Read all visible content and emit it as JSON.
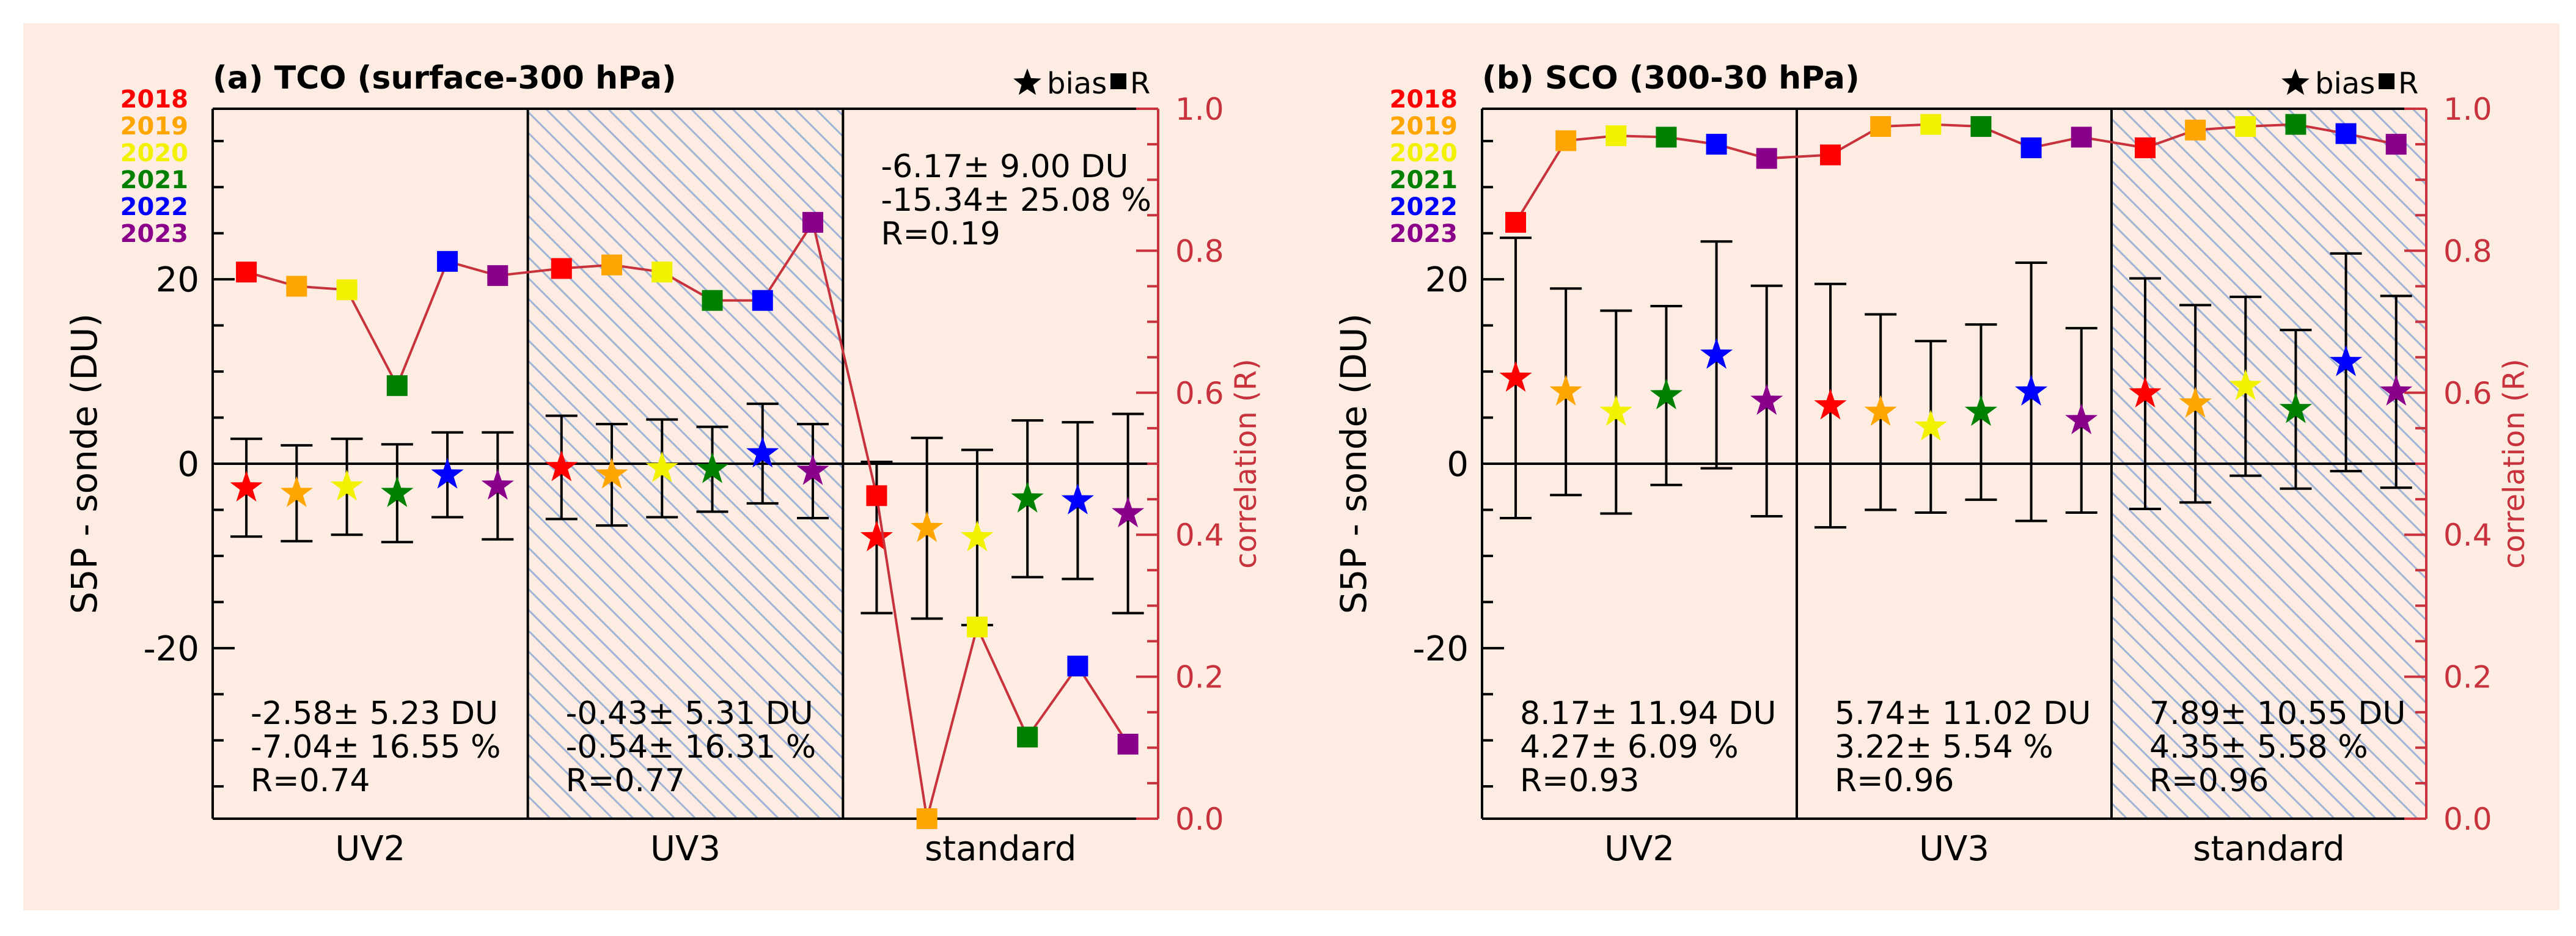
{
  "colors": {
    "background": "#fcece2",
    "axis": "#000000",
    "right_axis": "#c8323c",
    "r_line": "#c8323c",
    "hatch": "#9fb3d6",
    "years": {
      "2018": "#ff0000",
      "2019": "#ffa500",
      "2020": "#f2f200",
      "2021": "#008000",
      "2022": "#0000ff",
      "2023": "#8b008b"
    }
  },
  "legend": {
    "years": [
      "2018",
      "2019",
      "2020",
      "2021",
      "2022",
      "2023"
    ],
    "bias_label": "bias",
    "r_label": "R"
  },
  "chart_data": [
    {
      "type": "scatter",
      "title": "(a) TCO (surface-300 hPa)",
      "ylabel": "S5P - sonde (DU)",
      "y2label": "correlation (R)",
      "ylim": [
        -38.5,
        38.5
      ],
      "y2lim": [
        0.0,
        1.0
      ],
      "yticks": [
        20,
        0,
        -20
      ],
      "ytick_labels": [
        "20",
        "0",
        "-20"
      ],
      "y2ticks": [
        1.0,
        0.8,
        0.6,
        0.4,
        0.2,
        0.0
      ],
      "y2tick_labels": [
        "1.0",
        "0.8",
        "0.6",
        "0.4",
        "0.2",
        "0.0"
      ],
      "groups": [
        {
          "name": "UV2",
          "hatched": false,
          "bias": [
            -2.6,
            -3.2,
            -2.5,
            -3.2,
            -1.2,
            -2.4
          ],
          "bias_err": [
            5.3,
            5.2,
            5.2,
            5.3,
            4.6,
            5.8
          ],
          "r": [
            0.77,
            0.75,
            0.745,
            0.61,
            0.785,
            0.765
          ],
          "stats": [
            "-2.58± 5.23 DU",
            "-7.04± 16.55 %",
            "R=0.74"
          ],
          "stats_pos": "bottom"
        },
        {
          "name": "UV3",
          "hatched": true,
          "bias": [
            -0.4,
            -1.2,
            -0.5,
            -0.6,
            1.1,
            -0.8
          ],
          "bias_err": [
            5.6,
            5.5,
            5.3,
            4.6,
            5.4,
            5.1
          ],
          "r": [
            0.775,
            0.78,
            0.77,
            0.73,
            0.73,
            0.84
          ],
          "stats": [
            "-0.43± 5.31 DU",
            "-0.54± 16.31 %",
            "R=0.77"
          ],
          "stats_pos": "bottom"
        },
        {
          "name": "standard",
          "hatched": false,
          "bias": [
            -8.0,
            -7.0,
            -8.0,
            -3.8,
            -4.0,
            -5.4
          ],
          "bias_err": [
            8.2,
            9.8,
            9.5,
            8.5,
            8.5,
            10.8
          ],
          "r": [
            0.455,
            0.0,
            0.27,
            0.115,
            0.215,
            0.105
          ],
          "stats": [
            "-6.17± 9.00 DU",
            "-15.34± 25.08 %",
            "R=0.19"
          ],
          "stats_pos": "top"
        }
      ]
    },
    {
      "type": "scatter",
      "title": "(b) SCO (300-30 hPa)",
      "ylabel": "S5P - sonde (DU)",
      "y2label": "correlation (R)",
      "ylim": [
        -38.5,
        38.5
      ],
      "y2lim": [
        0.0,
        1.0
      ],
      "yticks": [
        20,
        0,
        -20
      ],
      "ytick_labels": [
        "20",
        "0",
        "-20"
      ],
      "y2ticks": [
        1.0,
        0.8,
        0.6,
        0.4,
        0.2,
        0.0
      ],
      "y2tick_labels": [
        "1.0",
        "0.8",
        "0.6",
        "0.4",
        "0.2",
        "0.0"
      ],
      "groups": [
        {
          "name": "UV2",
          "hatched": false,
          "bias": [
            9.3,
            7.8,
            5.6,
            7.4,
            11.8,
            6.8
          ],
          "bias_err": [
            15.2,
            11.2,
            11.0,
            9.7,
            12.3,
            12.5
          ],
          "r": [
            0.84,
            0.955,
            0.962,
            0.96,
            0.95,
            0.93
          ],
          "stats": [
            "8.17± 11.94 DU",
            "4.27± 6.09 %",
            "R=0.93"
          ],
          "stats_pos": "bottom"
        },
        {
          "name": "UV3",
          "hatched": false,
          "bias": [
            6.3,
            5.6,
            4.0,
            5.6,
            7.8,
            4.7
          ],
          "bias_err": [
            13.2,
            10.6,
            9.3,
            9.5,
            14.0,
            10.0
          ],
          "r": [
            0.935,
            0.975,
            0.978,
            0.975,
            0.945,
            0.96
          ],
          "stats": [
            "5.74± 11.02 DU",
            "3.22± 5.54 %",
            "R=0.96"
          ],
          "stats_pos": "bottom"
        },
        {
          "name": "standard",
          "hatched": true,
          "bias": [
            7.6,
            6.5,
            8.4,
            5.9,
            11.0,
            7.8
          ],
          "bias_err": [
            12.5,
            10.7,
            9.7,
            8.6,
            11.8,
            10.4
          ],
          "r": [
            0.945,
            0.97,
            0.975,
            0.978,
            0.965,
            0.95
          ],
          "stats": [
            "7.89± 10.55 DU",
            "4.35± 5.58 %",
            "R=0.96"
          ],
          "stats_pos": "bottom"
        }
      ]
    }
  ]
}
